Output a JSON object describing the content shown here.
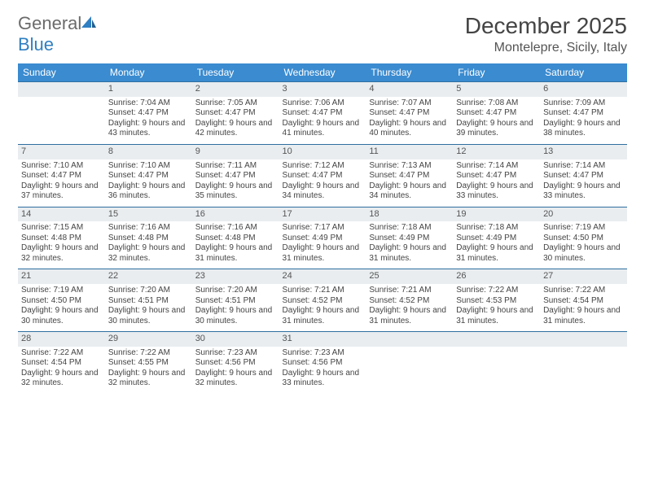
{
  "brand": {
    "name_gray": "General",
    "name_blue": "Blue"
  },
  "title": {
    "month": "December 2025",
    "location": "Montelepre, Sicily, Italy"
  },
  "colors": {
    "header_bg": "#3a8bd0",
    "daynum_bg": "#e9edf0",
    "row_border": "#2f6fa0",
    "text": "#444444",
    "brand_gray": "#6b6b6b",
    "brand_blue": "#2f7fc2"
  },
  "weekdays": [
    "Sunday",
    "Monday",
    "Tuesday",
    "Wednesday",
    "Thursday",
    "Friday",
    "Saturday"
  ],
  "weeks": [
    [
      null,
      {
        "n": "1",
        "sr": "Sunrise: 7:04 AM",
        "ss": "Sunset: 4:47 PM",
        "dl": "Daylight: 9 hours and 43 minutes."
      },
      {
        "n": "2",
        "sr": "Sunrise: 7:05 AM",
        "ss": "Sunset: 4:47 PM",
        "dl": "Daylight: 9 hours and 42 minutes."
      },
      {
        "n": "3",
        "sr": "Sunrise: 7:06 AM",
        "ss": "Sunset: 4:47 PM",
        "dl": "Daylight: 9 hours and 41 minutes."
      },
      {
        "n": "4",
        "sr": "Sunrise: 7:07 AM",
        "ss": "Sunset: 4:47 PM",
        "dl": "Daylight: 9 hours and 40 minutes."
      },
      {
        "n": "5",
        "sr": "Sunrise: 7:08 AM",
        "ss": "Sunset: 4:47 PM",
        "dl": "Daylight: 9 hours and 39 minutes."
      },
      {
        "n": "6",
        "sr": "Sunrise: 7:09 AM",
        "ss": "Sunset: 4:47 PM",
        "dl": "Daylight: 9 hours and 38 minutes."
      }
    ],
    [
      {
        "n": "7",
        "sr": "Sunrise: 7:10 AM",
        "ss": "Sunset: 4:47 PM",
        "dl": "Daylight: 9 hours and 37 minutes."
      },
      {
        "n": "8",
        "sr": "Sunrise: 7:10 AM",
        "ss": "Sunset: 4:47 PM",
        "dl": "Daylight: 9 hours and 36 minutes."
      },
      {
        "n": "9",
        "sr": "Sunrise: 7:11 AM",
        "ss": "Sunset: 4:47 PM",
        "dl": "Daylight: 9 hours and 35 minutes."
      },
      {
        "n": "10",
        "sr": "Sunrise: 7:12 AM",
        "ss": "Sunset: 4:47 PM",
        "dl": "Daylight: 9 hours and 34 minutes."
      },
      {
        "n": "11",
        "sr": "Sunrise: 7:13 AM",
        "ss": "Sunset: 4:47 PM",
        "dl": "Daylight: 9 hours and 34 minutes."
      },
      {
        "n": "12",
        "sr": "Sunrise: 7:14 AM",
        "ss": "Sunset: 4:47 PM",
        "dl": "Daylight: 9 hours and 33 minutes."
      },
      {
        "n": "13",
        "sr": "Sunrise: 7:14 AM",
        "ss": "Sunset: 4:47 PM",
        "dl": "Daylight: 9 hours and 33 minutes."
      }
    ],
    [
      {
        "n": "14",
        "sr": "Sunrise: 7:15 AM",
        "ss": "Sunset: 4:48 PM",
        "dl": "Daylight: 9 hours and 32 minutes."
      },
      {
        "n": "15",
        "sr": "Sunrise: 7:16 AM",
        "ss": "Sunset: 4:48 PM",
        "dl": "Daylight: 9 hours and 32 minutes."
      },
      {
        "n": "16",
        "sr": "Sunrise: 7:16 AM",
        "ss": "Sunset: 4:48 PM",
        "dl": "Daylight: 9 hours and 31 minutes."
      },
      {
        "n": "17",
        "sr": "Sunrise: 7:17 AM",
        "ss": "Sunset: 4:49 PM",
        "dl": "Daylight: 9 hours and 31 minutes."
      },
      {
        "n": "18",
        "sr": "Sunrise: 7:18 AM",
        "ss": "Sunset: 4:49 PM",
        "dl": "Daylight: 9 hours and 31 minutes."
      },
      {
        "n": "19",
        "sr": "Sunrise: 7:18 AM",
        "ss": "Sunset: 4:49 PM",
        "dl": "Daylight: 9 hours and 31 minutes."
      },
      {
        "n": "20",
        "sr": "Sunrise: 7:19 AM",
        "ss": "Sunset: 4:50 PM",
        "dl": "Daylight: 9 hours and 30 minutes."
      }
    ],
    [
      {
        "n": "21",
        "sr": "Sunrise: 7:19 AM",
        "ss": "Sunset: 4:50 PM",
        "dl": "Daylight: 9 hours and 30 minutes."
      },
      {
        "n": "22",
        "sr": "Sunrise: 7:20 AM",
        "ss": "Sunset: 4:51 PM",
        "dl": "Daylight: 9 hours and 30 minutes."
      },
      {
        "n": "23",
        "sr": "Sunrise: 7:20 AM",
        "ss": "Sunset: 4:51 PM",
        "dl": "Daylight: 9 hours and 30 minutes."
      },
      {
        "n": "24",
        "sr": "Sunrise: 7:21 AM",
        "ss": "Sunset: 4:52 PM",
        "dl": "Daylight: 9 hours and 31 minutes."
      },
      {
        "n": "25",
        "sr": "Sunrise: 7:21 AM",
        "ss": "Sunset: 4:52 PM",
        "dl": "Daylight: 9 hours and 31 minutes."
      },
      {
        "n": "26",
        "sr": "Sunrise: 7:22 AM",
        "ss": "Sunset: 4:53 PM",
        "dl": "Daylight: 9 hours and 31 minutes."
      },
      {
        "n": "27",
        "sr": "Sunrise: 7:22 AM",
        "ss": "Sunset: 4:54 PM",
        "dl": "Daylight: 9 hours and 31 minutes."
      }
    ],
    [
      {
        "n": "28",
        "sr": "Sunrise: 7:22 AM",
        "ss": "Sunset: 4:54 PM",
        "dl": "Daylight: 9 hours and 32 minutes."
      },
      {
        "n": "29",
        "sr": "Sunrise: 7:22 AM",
        "ss": "Sunset: 4:55 PM",
        "dl": "Daylight: 9 hours and 32 minutes."
      },
      {
        "n": "30",
        "sr": "Sunrise: 7:23 AM",
        "ss": "Sunset: 4:56 PM",
        "dl": "Daylight: 9 hours and 32 minutes."
      },
      {
        "n": "31",
        "sr": "Sunrise: 7:23 AM",
        "ss": "Sunset: 4:56 PM",
        "dl": "Daylight: 9 hours and 33 minutes."
      },
      null,
      null,
      null
    ]
  ]
}
